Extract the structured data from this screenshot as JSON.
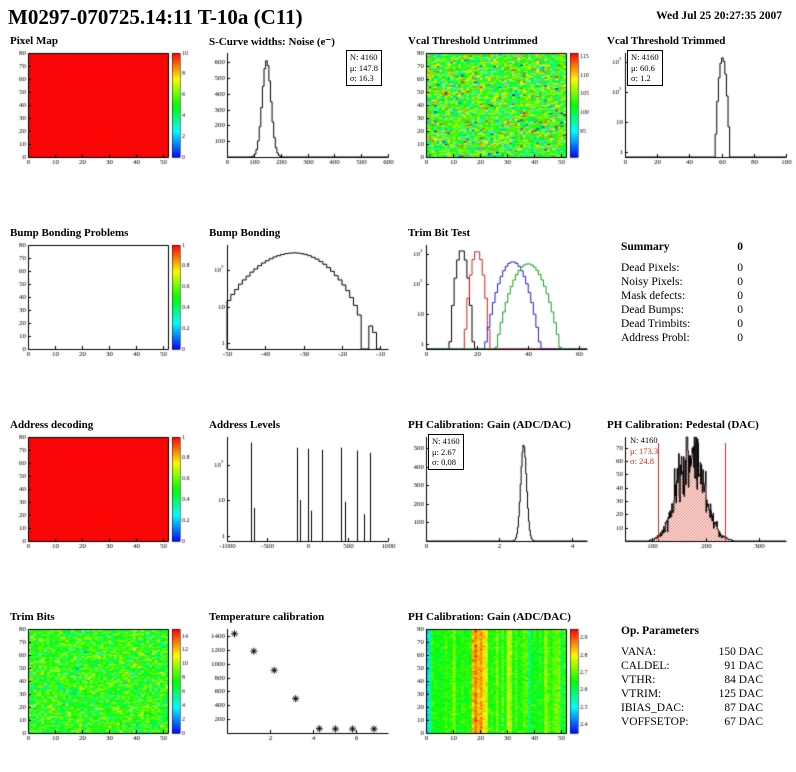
{
  "header": {
    "title": "M0297-070725.14:11 T-10a (C11)",
    "datetime": "Wed Jul 25 20:27:35 2007"
  },
  "summary": {
    "title": "Summary",
    "value": "0",
    "rows": [
      {
        "label": "Dead Pixels:",
        "value": "0"
      },
      {
        "label": "Noisy Pixels:",
        "value": "0"
      },
      {
        "label": "Mask defects:",
        "value": "0"
      },
      {
        "label": "Dead Bumps:",
        "value": "0"
      },
      {
        "label": "Dead Trimbits:",
        "value": "0"
      },
      {
        "label": "Address Probl:",
        "value": "0"
      }
    ]
  },
  "op_parameters": {
    "title": "Op. Parameters",
    "rows": [
      {
        "label": "VANA:",
        "value": "150 DAC"
      },
      {
        "label": "CALDEL:",
        "value": "91 DAC"
      },
      {
        "label": "VTHR:",
        "value": "84 DAC"
      },
      {
        "label": "VTRIM:",
        "value": "125 DAC"
      },
      {
        "label": "IBIAS_DAC:",
        "value": "87 DAC"
      },
      {
        "label": "VOFFSETOP:",
        "value": "67 DAC"
      }
    ]
  },
  "colors": {
    "accent_red": "#cc2a1e",
    "hist_line": "#000000",
    "trim_series": [
      "#000000",
      "#d42020",
      "#2020cc",
      "#18a018"
    ]
  },
  "chart_data": [
    {
      "id": "pixel-map",
      "title": "Pixel Map",
      "type": "heatmap",
      "pattern": "uniform",
      "value": 10,
      "zlim": [
        0,
        10
      ],
      "cticks": [
        0,
        2,
        4,
        6,
        8,
        10
      ],
      "xlim": [
        0,
        52
      ],
      "ylim": [
        0,
        80
      ],
      "xticks": [
        0,
        10,
        20,
        30,
        40,
        50
      ],
      "yticks": [
        0,
        10,
        20,
        30,
        40,
        50,
        60,
        70,
        80
      ]
    },
    {
      "id": "scurve-noise",
      "title": "S-Curve widths: Noise (e⁻)",
      "type": "hist",
      "gauss": {
        "n": 4160,
        "mean": 147.8,
        "sigma": 16.3,
        "binWidth": 6
      },
      "stats": [
        "N: 4160",
        "μ: 147.8",
        "σ: 16.3"
      ],
      "xlim": [
        0,
        600
      ],
      "xticks": [
        0,
        100,
        200,
        300,
        400,
        500,
        600
      ],
      "ylim": [
        0,
        660
      ],
      "yticks": [
        100,
        200,
        300,
        400,
        500,
        600
      ]
    },
    {
      "id": "vcal-untrimmed",
      "title": "Vcal Threshold Untrimmed",
      "type": "heatmap",
      "pattern": "noise",
      "mean": 103,
      "sigma": 5,
      "zlim": [
        88,
        116
      ],
      "cticks": [
        95,
        100,
        105,
        110,
        115
      ],
      "xlim": [
        0,
        52
      ],
      "ylim": [
        0,
        80
      ],
      "xticks": [
        0,
        10,
        20,
        30,
        40,
        50
      ],
      "yticks": [
        0,
        10,
        20,
        30,
        40,
        50,
        60,
        70,
        80
      ]
    },
    {
      "id": "vcal-trimmed",
      "title": "Vcal Threshold Trimmed",
      "type": "hist",
      "ylog": true,
      "gauss": {
        "n": 4160,
        "mean": 60.6,
        "sigma": 1.2,
        "binWidth": 1
      },
      "stats": [
        "N: 4160",
        "μ: 60.6",
        "σ: 1.2"
      ],
      "xlim": [
        0,
        100
      ],
      "xticks": [
        0,
        20,
        40,
        60,
        80,
        100
      ],
      "ylim": [
        0.7,
        2000
      ]
    },
    {
      "id": "bump-bonding-problems",
      "title": "Bump Bonding Problems",
      "type": "heatmap",
      "pattern": "empty",
      "zlim": [
        0,
        1
      ],
      "cticks": [
        0,
        0.2,
        0.4,
        0.6,
        0.8,
        1
      ],
      "xlim": [
        0,
        52
      ],
      "ylim": [
        0,
        80
      ],
      "xticks": [
        0,
        10,
        20,
        30,
        40,
        50
      ],
      "yticks": [
        0,
        10,
        20,
        30,
        40,
        50,
        60,
        70,
        80
      ]
    },
    {
      "id": "bump-bonding",
      "title": "Bump Bonding",
      "type": "hist",
      "ylog": true,
      "bins": {
        "start": -50,
        "width": 1,
        "counts": [
          15,
          22,
          30,
          42,
          55,
          70,
          90,
          110,
          135,
          160,
          185,
          210,
          235,
          255,
          275,
          290,
          300,
          305,
          300,
          290,
          275,
          255,
          230,
          205,
          175,
          148,
          120,
          95,
          72,
          55,
          40,
          28,
          18,
          11,
          6,
          0,
          0,
          3,
          2,
          0
        ]
      },
      "xlim": [
        -50,
        -8
      ],
      "xticks": [
        -50,
        -40,
        -30,
        -20,
        -10
      ],
      "ylim": [
        0.7,
        500
      ]
    },
    {
      "id": "trim-bit-test",
      "title": "Trim Bit Test",
      "type": "multi_hist",
      "ylog": true,
      "series": [
        {
          "color": "#000000",
          "n": 4160,
          "mean": 14,
          "sigma": 1.2,
          "binWidth": 1
        },
        {
          "color": "#d42020",
          "n": 4160,
          "mean": 20,
          "sigma": 1.3,
          "binWidth": 1
        },
        {
          "color": "#2020cc",
          "n": 4160,
          "mean": 34,
          "sigma": 3.0,
          "binWidth": 1
        },
        {
          "color": "#18a018",
          "n": 4160,
          "mean": 40,
          "sigma": 3.5,
          "binWidth": 1
        }
      ],
      "xlim": [
        0,
        63
      ],
      "xticks": [
        0,
        20,
        40,
        60
      ],
      "ylim": [
        0.7,
        2000
      ]
    },
    {
      "id": "address-decoding",
      "title": "Address decoding",
      "type": "heatmap",
      "pattern": "uniform",
      "value": 1,
      "zlim": [
        0,
        1
      ],
      "cticks": [
        0,
        0.2,
        0.4,
        0.6,
        0.8,
        1
      ],
      "xlim": [
        0,
        52
      ],
      "ylim": [
        0,
        80
      ],
      "xticks": [
        0,
        10,
        20,
        30,
        40,
        50
      ],
      "yticks": [
        0,
        10,
        20,
        30,
        40,
        50,
        60,
        70,
        80
      ]
    },
    {
      "id": "address-levels",
      "title": "Address Levels",
      "type": "spikes",
      "ylog": true,
      "spikes": [
        [
          -700,
          420
        ],
        [
          -660,
          6
        ],
        [
          -130,
          300
        ],
        [
          -90,
          10
        ],
        [
          0,
          280
        ],
        [
          40,
          5
        ],
        [
          175,
          260
        ],
        [
          420,
          300
        ],
        [
          470,
          9
        ],
        [
          610,
          250
        ],
        [
          700,
          4
        ],
        [
          775,
          215
        ]
      ],
      "xlim": [
        -1000,
        1000
      ],
      "xticks": [
        -1000,
        -500,
        0,
        500,
        1000
      ],
      "ylim": [
        0.7,
        600
      ]
    },
    {
      "id": "ph-gain-hist",
      "title": "PH Calibration: Gain (ADC/DAC)",
      "type": "hist",
      "gauss": {
        "n": 4160,
        "mean": 2.67,
        "sigma": 0.08,
        "binWidth": 0.025
      },
      "stats": [
        "N: 4160",
        "μ: 2.67",
        "σ: 0.08"
      ],
      "xlim": [
        0,
        4.4
      ],
      "xticks": [
        0,
        2,
        4
      ],
      "ylim": [
        0,
        560
      ],
      "yticks": [
        100,
        200,
        300,
        400,
        500
      ]
    },
    {
      "id": "ph-pedestal",
      "title": "PH Calibration: Pedestal (DAC)",
      "type": "hist",
      "gauss": {
        "n": 4160,
        "mean": 173.3,
        "sigma": 24.8,
        "binWidth": 1,
        "jitter": 0.25,
        "seed": 7
      },
      "fill": "hatch",
      "vlines": [
        111,
        236
      ],
      "stats": [
        "N: 4160",
        "μ: 173.3",
        "σ: 24.8"
      ],
      "xlim": [
        50,
        350
      ],
      "xticks": [
        100,
        200,
        300
      ],
      "ylim": [
        0,
        78
      ],
      "yticks": [
        10,
        20,
        30,
        40,
        50,
        60,
        70
      ]
    },
    {
      "id": "trim-bits",
      "title": "Trim Bits",
      "type": "heatmap",
      "pattern": "noise",
      "mean": 7.8,
      "sigma": 1.6,
      "zlim": [
        0,
        15
      ],
      "cticks": [
        0,
        2,
        4,
        6,
        8,
        10,
        12,
        14
      ],
      "xlim": [
        0,
        52
      ],
      "ylim": [
        0,
        80
      ],
      "xticks": [
        0,
        10,
        20,
        30,
        40,
        50
      ],
      "yticks": [
        0,
        10,
        20,
        30,
        40,
        50,
        60,
        70,
        80
      ]
    },
    {
      "id": "temperature-calibration",
      "title": "Temperature calibration",
      "type": "scatter",
      "marker": "asterisk",
      "points": [
        [
          0.35,
          1430
        ],
        [
          1.25,
          1180
        ],
        [
          2.2,
          905
        ],
        [
          3.2,
          495
        ],
        [
          4.3,
          62
        ],
        [
          5.05,
          58
        ],
        [
          5.85,
          58
        ],
        [
          6.85,
          58
        ]
      ],
      "xlim": [
        0,
        7.5
      ],
      "xticks": [
        2,
        4,
        6
      ],
      "ylim": [
        0,
        1500
      ],
      "yticks": [
        200,
        400,
        600,
        800,
        1000,
        1200,
        1400
      ]
    },
    {
      "id": "ph-gain-map",
      "title": "PH Calibration: Gain (ADC/DAC)",
      "type": "heatmap",
      "pattern": "columns",
      "base": 2.67,
      "cellNoise": 0.025,
      "colNoise": 0.02,
      "hot_columns": [
        [
          17,
          2.84
        ],
        [
          18,
          2.88
        ],
        [
          19,
          2.83
        ],
        [
          20,
          2.86
        ],
        [
          21,
          2.8
        ],
        [
          22,
          2.78
        ],
        [
          30,
          2.77
        ],
        [
          31,
          2.74
        ],
        [
          10,
          2.73
        ],
        [
          44,
          2.75
        ],
        [
          26,
          2.72
        ]
      ],
      "cold_columns": [
        [
          0,
          2.48
        ],
        [
          1,
          2.55
        ],
        [
          38,
          2.58
        ],
        [
          50,
          2.6
        ]
      ],
      "zlim": [
        2.35,
        2.95
      ],
      "cticks": [
        2.4,
        2.5,
        2.6,
        2.7,
        2.8,
        2.9
      ],
      "xlim": [
        0,
        52
      ],
      "ylim": [
        0,
        80
      ],
      "xticks": [
        0,
        10,
        20,
        30,
        40,
        50
      ],
      "yticks": [
        0,
        10,
        20,
        30,
        40,
        50,
        60,
        70,
        80
      ]
    }
  ]
}
